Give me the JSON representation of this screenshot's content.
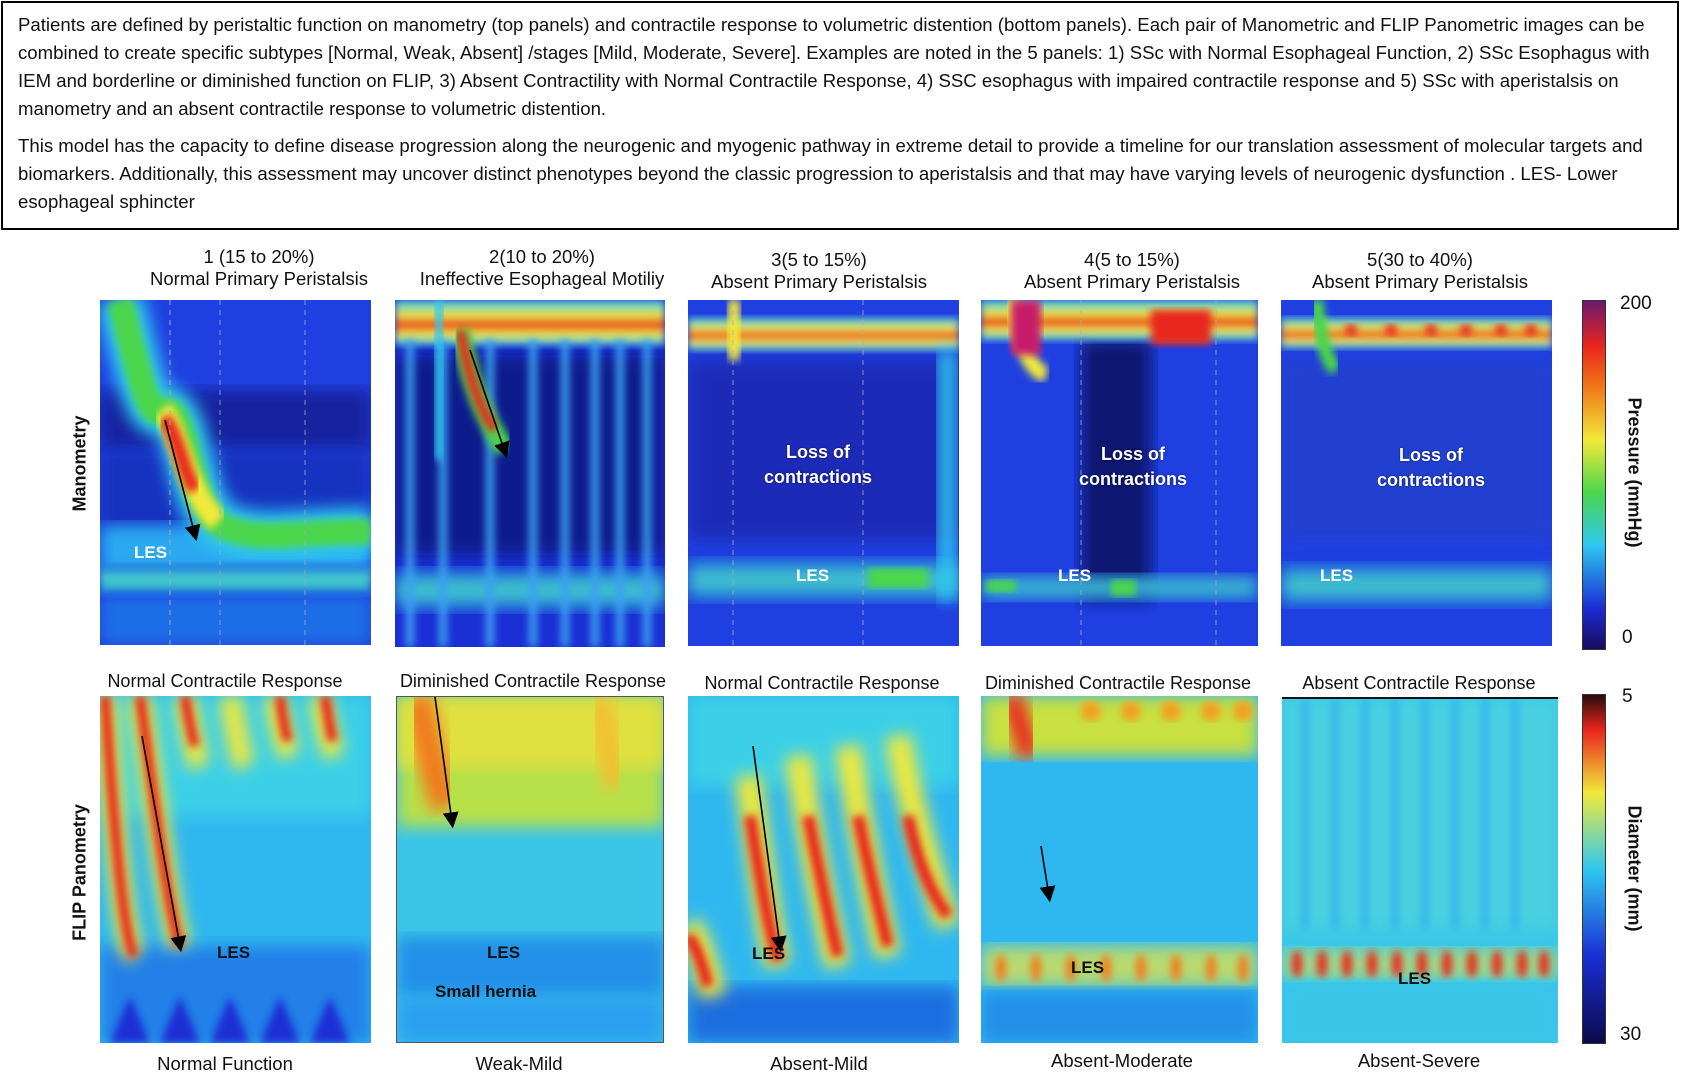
{
  "description": {
    "para1": "Patients are defined by peristaltic function on manometry (top panels) and contractile response to volumetric distention (bottom panels).  Each pair of Manometric and FLIP Panometric images can be combined to create specific subtypes [Normal, Weak, Absent] /stages [Mild, Moderate, Severe].  Examples are noted in the 5 panels: 1) SSc with Normal Esophageal Function, 2) SSc Esophagus with IEM and borderline or diminished function on FLIP, 3) Absent Contractility with Normal Contractile Response, 4) SSC esophagus with impaired contractile response and 5) SSc with aperistalsis on manometry and an absent contractile response to volumetric distention.",
    "para2": "This model has the capacity to define disease progression along the neurogenic and myogenic pathway in extreme detail to provide a timeline for our translation assessment of molecular targets and biomarkers.  Additionally, this assessment may uncover distinct phenotypes beyond the classic progression to aperistalsis and that may have varying levels of neurogenic dysfunction . LES- Lower esophageal sphincter"
  },
  "row_labels": {
    "manometry": "Manometry",
    "flip": "FLIP Panometry"
  },
  "panels": [
    {
      "num": "1 (15 to 20%)",
      "mano_title": "Normal Primary Peristalsis",
      "flip_title": "Normal Contractile Response",
      "stage": "Normal Function"
    },
    {
      "num": "2(10 to 20%)",
      "mano_title": "Ineffective Esophageal Motiliy",
      "flip_title": "Diminished Contractile Response",
      "stage": "Weak-Mild"
    },
    {
      "num": "3(5 to 15%)",
      "mano_title": "Absent Primary Peristalsis",
      "flip_title": "Normal Contractile Response",
      "stage": "Absent-Mild"
    },
    {
      "num": "4(5 to 15%)",
      "mano_title": "Absent Primary Peristalsis",
      "flip_title": "Diminished Contractile Response",
      "stage": "Absent-Moderate"
    },
    {
      "num": "5(30 to 40%)",
      "mano_title": "Absent Primary Peristalsis",
      "flip_title": "Absent Contractile Response",
      "stage": "Absent-Severe"
    }
  ],
  "annotations": {
    "les": "LES",
    "loss_line1": "Loss of",
    "loss_line2": "contractions",
    "hernia": "Small hernia"
  },
  "colorbars": {
    "pressure": {
      "title": "Pressure (mmHg)",
      "max": "200",
      "min": "0"
    },
    "diameter": {
      "title": "Diameter (mm)",
      "top": "5",
      "bottom": "30"
    }
  },
  "colors": {
    "deep_blue": "#1a2fd4",
    "cyan": "#2fc8f0",
    "green": "#4cd64c",
    "yellow": "#f2e93a",
    "red": "#e8251c"
  }
}
